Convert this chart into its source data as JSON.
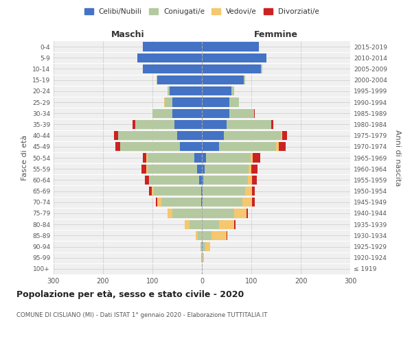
{
  "age_groups": [
    "100+",
    "95-99",
    "90-94",
    "85-89",
    "80-84",
    "75-79",
    "70-74",
    "65-69",
    "60-64",
    "55-59",
    "50-54",
    "45-49",
    "40-44",
    "35-39",
    "30-34",
    "25-29",
    "20-24",
    "15-19",
    "10-14",
    "5-9",
    "0-4"
  ],
  "birth_years": [
    "≤ 1919",
    "1920-1924",
    "1925-1929",
    "1930-1934",
    "1935-1939",
    "1940-1944",
    "1945-1949",
    "1950-1954",
    "1955-1959",
    "1960-1964",
    "1965-1969",
    "1970-1974",
    "1975-1979",
    "1980-1984",
    "1985-1989",
    "1990-1994",
    "1995-1999",
    "2000-2004",
    "2005-2009",
    "2010-2014",
    "2015-2019"
  ],
  "maschi": {
    "celibi": [
      0,
      0,
      0,
      0,
      0,
      0,
      2,
      2,
      5,
      10,
      15,
      45,
      50,
      55,
      60,
      60,
      65,
      90,
      120,
      130,
      120
    ],
    "coniugati": [
      0,
      2,
      3,
      8,
      25,
      60,
      80,
      95,
      100,
      100,
      95,
      120,
      120,
      80,
      40,
      15,
      5,
      2,
      0,
      0,
      0
    ],
    "vedovi": [
      0,
      0,
      0,
      5,
      10,
      10,
      8,
      5,
      2,
      2,
      2,
      0,
      0,
      0,
      0,
      2,
      0,
      0,
      0,
      0,
      0
    ],
    "divorziati": [
      0,
      0,
      0,
      0,
      0,
      0,
      3,
      5,
      8,
      10,
      8,
      10,
      8,
      5,
      0,
      0,
      0,
      0,
      0,
      0,
      0
    ]
  },
  "femmine": {
    "nubili": [
      0,
      0,
      2,
      0,
      0,
      0,
      2,
      2,
      3,
      5,
      8,
      35,
      45,
      50,
      55,
      55,
      60,
      85,
      120,
      130,
      115
    ],
    "coniugate": [
      0,
      2,
      5,
      20,
      35,
      65,
      80,
      85,
      90,
      90,
      90,
      115,
      115,
      90,
      50,
      20,
      5,
      2,
      2,
      0,
      0
    ],
    "vedove": [
      0,
      2,
      10,
      30,
      30,
      25,
      20,
      15,
      8,
      5,
      5,
      5,
      2,
      0,
      0,
      0,
      0,
      0,
      0,
      0,
      0
    ],
    "divorziate": [
      0,
      0,
      0,
      2,
      3,
      3,
      5,
      5,
      10,
      12,
      15,
      15,
      10,
      5,
      2,
      0,
      0,
      0,
      0,
      0,
      0
    ]
  },
  "colors": {
    "celibi": "#4472c4",
    "coniugati": "#b5c9a0",
    "vedovi": "#f5c76e",
    "divorziati": "#cc2222"
  },
  "xlim": 300,
  "title": "Popolazione per età, sesso e stato civile - 2020",
  "subtitle": "COMUNE DI CISLIANO (MI) - Dati ISTAT 1° gennaio 2020 - Elaborazione TUTTITALIA.IT",
  "ylabel_left": "Fasce di età",
  "ylabel_right": "Anni di nascita",
  "xlabel_left": "Maschi",
  "xlabel_right": "Femmine",
  "bg_color": "#f0f0f0",
  "grid_color": "#cccccc"
}
